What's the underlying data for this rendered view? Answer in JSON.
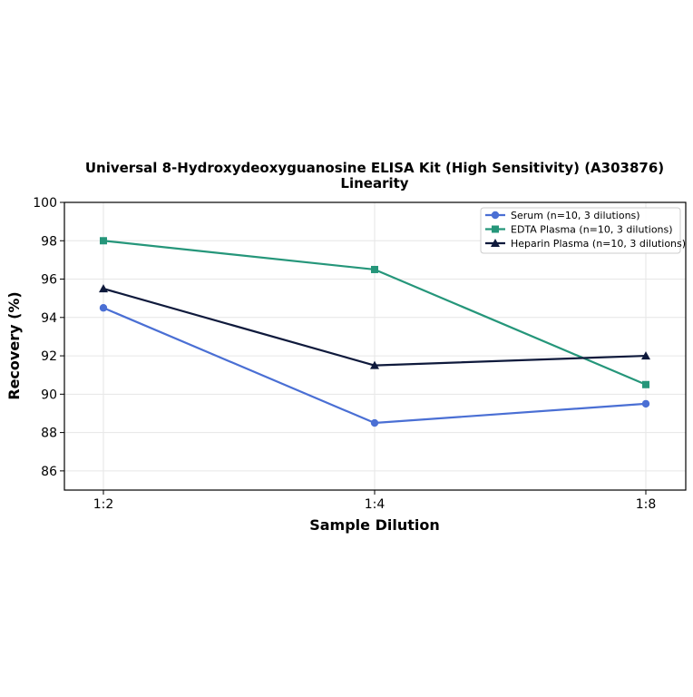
{
  "chart_data": {
    "type": "line",
    "title": "Universal 8-Hydroxydeoxyguanosine ELISA Kit (High Sensitivity) (A303876)",
    "subtitle": "Linearity",
    "xlabel": "Sample Dilution",
    "ylabel": "Recovery (%)",
    "categories": [
      "1:2",
      "1:4",
      "1:8"
    ],
    "ylim": [
      85,
      100
    ],
    "yticks": [
      86,
      88,
      90,
      92,
      94,
      96,
      98,
      100
    ],
    "grid": true,
    "legend_position": "top-right",
    "series": [
      {
        "name": "Serum (n=10, 3 dilutions)",
        "values": [
          94.5,
          88.5,
          89.5
        ],
        "color": "#4a6fd4",
        "marker": "circle"
      },
      {
        "name": "EDTA Plasma (n=10, 3 dilutions)",
        "values": [
          98.0,
          96.5,
          90.5
        ],
        "color": "#25967a",
        "marker": "square"
      },
      {
        "name": "Heparin Plasma (n=10, 3 dilutions)",
        "values": [
          95.5,
          91.5,
          92.0
        ],
        "color": "#0f1a3c",
        "marker": "triangle"
      }
    ]
  }
}
